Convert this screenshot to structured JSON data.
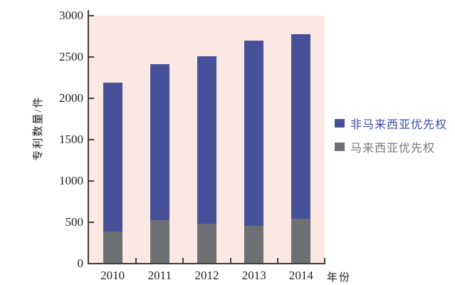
{
  "chart_data": {
    "type": "bar",
    "stacked": true,
    "categories": [
      "2010",
      "2011",
      "2012",
      "2013",
      "2014"
    ],
    "series": [
      {
        "name": "马来西亚优先权",
        "color": "#6e7074",
        "values": [
          390,
          530,
          480,
          460,
          545
        ]
      },
      {
        "name": "非马来西亚优先权",
        "color": "#47519a",
        "values": [
          1800,
          1880,
          2030,
          2240,
          2235
        ]
      }
    ],
    "stacked_totals": [
      2190,
      2410,
      2510,
      2700,
      2780
    ],
    "ylabel": "专利数量/件",
    "xlabel": "年份",
    "ylim": [
      0,
      3000
    ],
    "yticks": [
      0,
      500,
      1000,
      1500,
      2000,
      2500,
      3000
    ],
    "grid": false,
    "legend_position": "right",
    "plot_bg_color": "#fce8e3",
    "axis_color": "#3d3d3d",
    "legend": [
      {
        "label": "非马来西亚优先权",
        "swatch_color": "#47519a",
        "text_color": "#3c4da3"
      },
      {
        "label": "马来西亚优先权",
        "swatch_color": "#6e7074",
        "text_color": "#76777b"
      }
    ]
  }
}
